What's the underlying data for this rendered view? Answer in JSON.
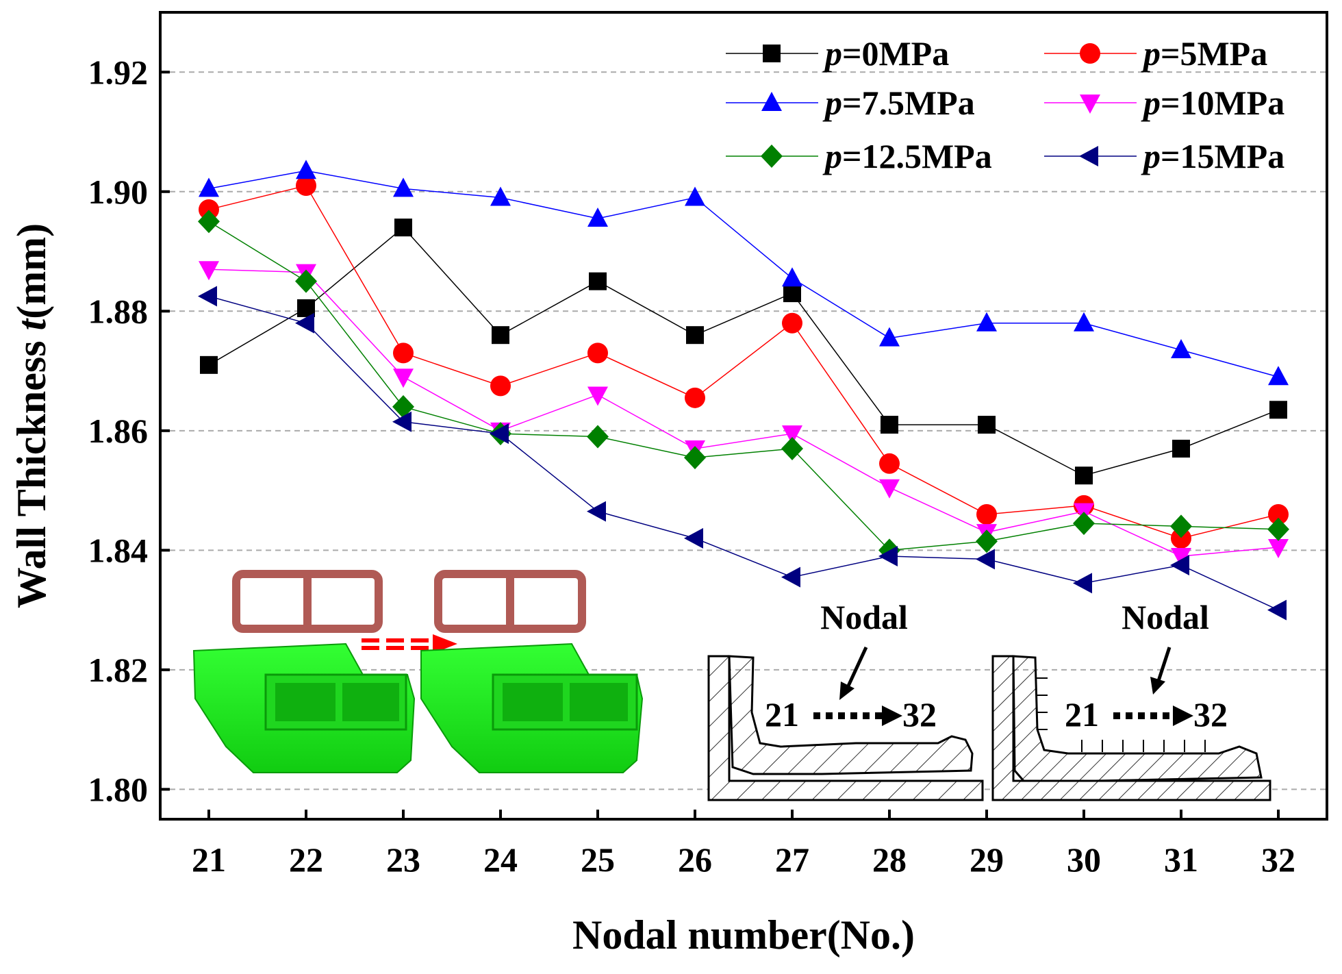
{
  "chart_data": {
    "type": "line",
    "title": "",
    "xlabel": "Nodal number(No.)",
    "ylabel_prefix": "Wall Thickness ",
    "ylabel_var": "t",
    "ylabel_suffix": "(mm)",
    "x": [
      21,
      22,
      23,
      24,
      25,
      26,
      27,
      28,
      29,
      30,
      31,
      32
    ],
    "x_ticks": [
      "21",
      "22",
      "23",
      "24",
      "25",
      "26",
      "27",
      "28",
      "29",
      "30",
      "31",
      "32"
    ],
    "xlim": [
      20.5,
      32.5
    ],
    "ylim": [
      1.795,
      1.93
    ],
    "y_ticks": [
      "1.80",
      "1.82",
      "1.84",
      "1.86",
      "1.88",
      "1.90",
      "1.92"
    ],
    "y_tick_values": [
      1.8,
      1.82,
      1.84,
      1.86,
      1.88,
      1.9,
      1.92
    ],
    "grid": "horizontal dashed",
    "legend_position": "top-right",
    "series": [
      {
        "name": "p=0MPa",
        "var": "p",
        "label": "=0MPa",
        "color": "#000000",
        "marker": "square",
        "values": [
          1.871,
          1.8805,
          1.894,
          1.876,
          1.885,
          1.876,
          1.883,
          1.861,
          1.861,
          1.8525,
          1.857,
          1.8635
        ]
      },
      {
        "name": "p=5MPa",
        "var": "p",
        "label": "=5MPa",
        "color": "#ff0000",
        "marker": "circle",
        "values": [
          1.897,
          1.901,
          1.873,
          1.8675,
          1.873,
          1.8655,
          1.878,
          1.8545,
          1.846,
          1.8475,
          1.842,
          1.846
        ]
      },
      {
        "name": "p=7.5MPa",
        "var": "p",
        "label": "=7.5MPa",
        "color": "#0000ff",
        "marker": "triangle-up",
        "values": [
          1.9005,
          1.9035,
          1.9005,
          1.899,
          1.8955,
          1.899,
          1.8855,
          1.8755,
          1.878,
          1.878,
          1.8735,
          1.869
        ]
      },
      {
        "name": "p=10MPa",
        "var": "p",
        "label": "=10MPa",
        "color": "#ff00ff",
        "marker": "triangle-down",
        "values": [
          1.887,
          1.8865,
          1.869,
          1.86,
          1.866,
          1.857,
          1.8595,
          1.8505,
          1.843,
          1.8465,
          1.839,
          1.8405
        ]
      },
      {
        "name": "p=12.5MPa",
        "var": "p",
        "label": "=12.5MPa",
        "color": "#008000",
        "marker": "diamond",
        "values": [
          1.895,
          1.885,
          1.864,
          1.8595,
          1.859,
          1.8555,
          1.857,
          1.84,
          1.8415,
          1.8445,
          1.844,
          1.8435
        ]
      },
      {
        "name": "p=15MPa",
        "var": "p",
        "label": "=15MPa",
        "color": "#000080",
        "marker": "triangle-left",
        "values": [
          1.8825,
          1.878,
          1.8615,
          1.8595,
          1.8465,
          1.842,
          1.8355,
          1.839,
          1.8385,
          1.8345,
          1.8375,
          1.83
        ]
      }
    ],
    "insets": {
      "part_colors": {
        "profile": "#b05a55",
        "solid": "#22ee22",
        "arrow": "#ff0000"
      },
      "section_left": {
        "label": "Nodal",
        "from": "21",
        "to": "32"
      },
      "section_right": {
        "label": "Nodal",
        "from": "21",
        "to": "32"
      }
    }
  }
}
